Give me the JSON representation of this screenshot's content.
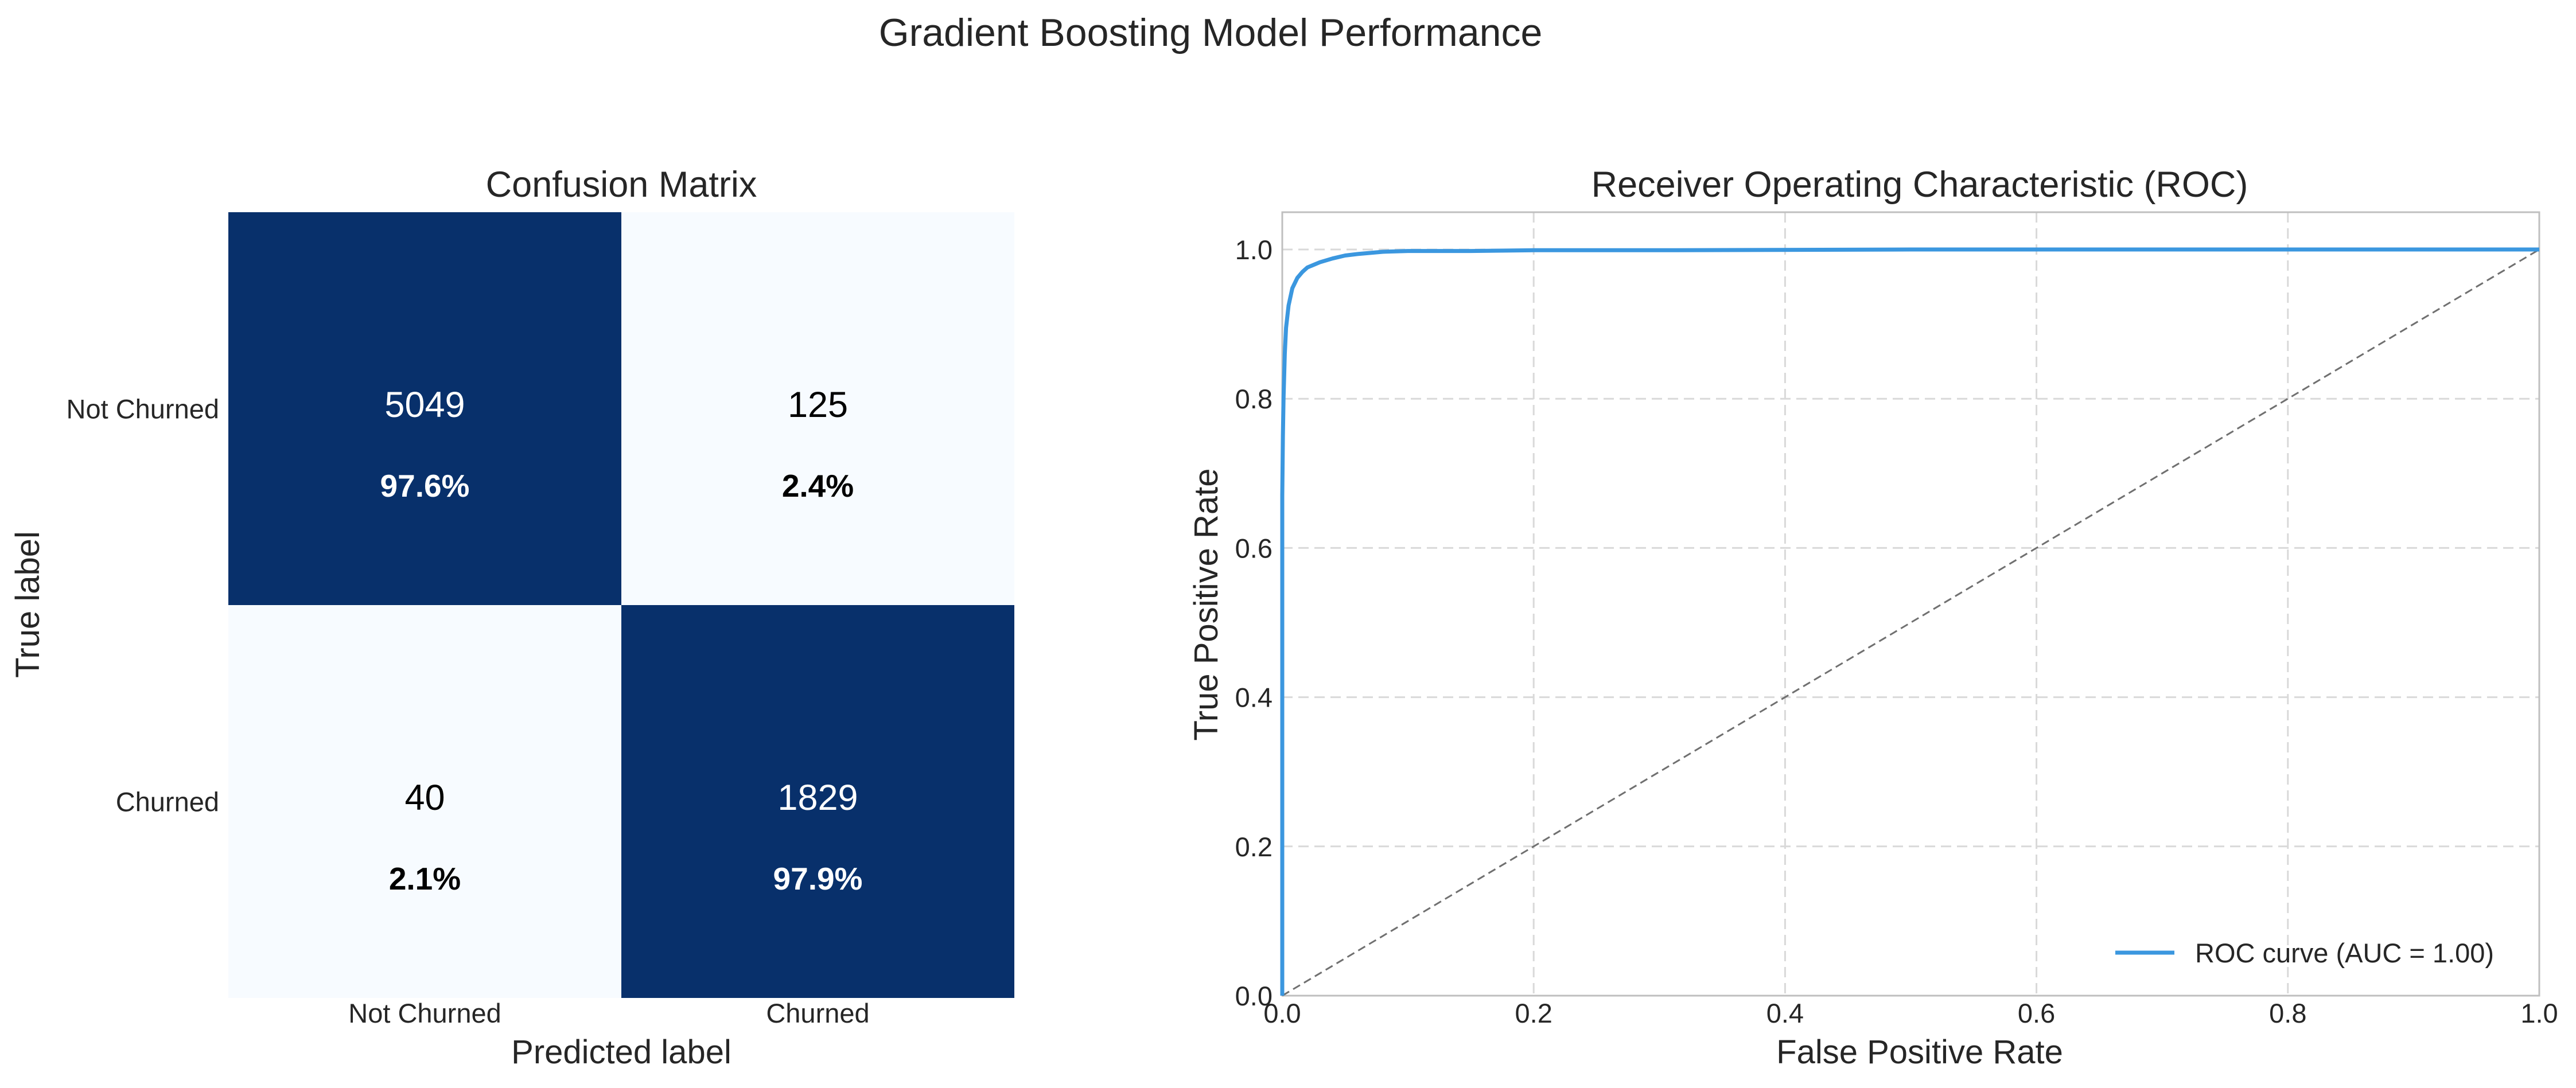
{
  "figure": {
    "suptitle": "Gradient Boosting Model Performance"
  },
  "colors": {
    "dark_cell": "#08306b",
    "light_cell": "#f7fbff",
    "roc_line": "#3b97df",
    "diagonal": "#707070",
    "grid": "#d9d9d9",
    "text": "#262626"
  },
  "chart_data": [
    {
      "type": "heatmap",
      "title": "Confusion Matrix",
      "xlabel": "Predicted label",
      "ylabel": "True label",
      "x_categories": [
        "Not Churned",
        "Churned"
      ],
      "y_categories": [
        "Not Churned",
        "Churned"
      ],
      "values": [
        [
          5049,
          125
        ],
        [
          40,
          1829
        ]
      ],
      "percentages": [
        [
          "97.6%",
          "2.4%"
        ],
        [
          "2.1%",
          "97.9%"
        ]
      ],
      "normalized": [
        [
          0.976,
          0.024
        ],
        [
          0.021,
          0.979
        ]
      ],
      "colormap": "Blues",
      "colorbar": false
    },
    {
      "type": "line",
      "title": "Receiver Operating Characteristic (ROC)",
      "xlabel": "False Positive Rate",
      "ylabel": "True Positive Rate",
      "xlim": [
        0.0,
        1.0
      ],
      "ylim": [
        0.0,
        1.05
      ],
      "xticks": [
        "0.0",
        "0.2",
        "0.4",
        "0.6",
        "0.8",
        "1.0"
      ],
      "yticks": [
        "0.0",
        "0.2",
        "0.4",
        "0.6",
        "0.8",
        "1.0"
      ],
      "grid": true,
      "legend_position": "lower-right",
      "series": [
        {
          "name": "ROC curve (AUC = 1.00)",
          "style": "solid",
          "x": [
            0.0,
            0.0,
            0.0005,
            0.001,
            0.002,
            0.003,
            0.005,
            0.008,
            0.012,
            0.016,
            0.02,
            0.03,
            0.04,
            0.05,
            0.06,
            0.08,
            0.1,
            0.15,
            0.2,
            0.3,
            0.5,
            0.7,
            1.0
          ],
          "y": [
            0.0,
            0.67,
            0.75,
            0.8,
            0.86,
            0.895,
            0.925,
            0.948,
            0.962,
            0.97,
            0.976,
            0.983,
            0.988,
            0.992,
            0.994,
            0.997,
            0.998,
            0.998,
            0.999,
            0.999,
            1.0,
            1.0,
            1.0
          ]
        },
        {
          "name": "",
          "style": "dashed",
          "x": [
            0.0,
            1.0
          ],
          "y": [
            0.0,
            1.0
          ]
        }
      ]
    }
  ]
}
